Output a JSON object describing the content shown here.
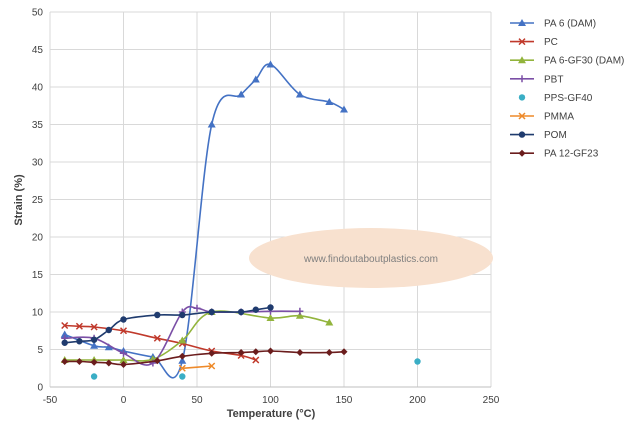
{
  "chart_data": {
    "type": "scatter",
    "title": "",
    "xlabel": "Temperature (°C)",
    "ylabel": "Strain (%)",
    "xlim": [
      -50,
      250
    ],
    "ylim": [
      0,
      50
    ],
    "xticks": [
      -50,
      0,
      50,
      100,
      150,
      200,
      250
    ],
    "yticks": [
      0,
      5,
      10,
      15,
      20,
      25,
      30,
      35,
      40,
      45,
      50
    ],
    "grid": true,
    "legend_position": "right",
    "watermark": "www.findoutaboutplastics.com",
    "series": [
      {
        "name": "PA 6 (DAM)",
        "color": "#4472c4",
        "marker": "triangle",
        "smooth": true,
        "x": [
          -40,
          -20,
          -10,
          0,
          20,
          40,
          60,
          80,
          90,
          100,
          120,
          140,
          150
        ],
        "y": [
          7,
          5.5,
          5.3,
          4.8,
          4,
          3.5,
          35,
          39,
          41,
          43,
          39,
          38,
          37
        ]
      },
      {
        "name": "PC",
        "color": "#c0392b",
        "marker": "x",
        "smooth": true,
        "x": [
          -40,
          -30,
          -20,
          0,
          23,
          40,
          60,
          80,
          90
        ],
        "y": [
          8.2,
          8.1,
          8.0,
          7.5,
          6.5,
          5.8,
          4.8,
          4.2,
          3.6
        ]
      },
      {
        "name": "PA 6-GF30 (DAM)",
        "color": "#92b43c",
        "marker": "triangle",
        "smooth": true,
        "x": [
          -40,
          -20,
          0,
          20,
          40,
          60,
          100,
          120,
          140
        ],
        "y": [
          3.6,
          3.6,
          3.6,
          3.7,
          6.2,
          10.0,
          9.2,
          9.5,
          8.6
        ]
      },
      {
        "name": "PBT",
        "color": "#7b4fa6",
        "marker": "plus",
        "smooth": true,
        "x": [
          -40,
          -20,
          0,
          20,
          40,
          50,
          60,
          80,
          100,
          120
        ],
        "y": [
          6.5,
          6.5,
          4.5,
          3.2,
          10.0,
          10.5,
          10.0,
          10.0,
          10.1,
          10.1
        ]
      },
      {
        "name": "PPS-GF40",
        "color": "#3aaec5",
        "marker": "circle",
        "smooth": false,
        "line": false,
        "x": [
          -20,
          40,
          200
        ],
        "y": [
          1.4,
          1.4,
          3.4
        ]
      },
      {
        "name": "PMMA",
        "color": "#ee8a2a",
        "marker": "x",
        "smooth": true,
        "x": [
          40,
          60
        ],
        "y": [
          2.5,
          2.8
        ]
      },
      {
        "name": "POM",
        "color": "#1f3b6e",
        "marker": "circle",
        "smooth": true,
        "x": [
          -40,
          -30,
          -20,
          -10,
          0,
          23,
          40,
          60,
          80,
          90,
          100
        ],
        "y": [
          5.9,
          6.1,
          6.3,
          7.6,
          9.0,
          9.6,
          9.6,
          10.0,
          10.0,
          10.3,
          10.6
        ]
      },
      {
        "name": "PA 12-GF23",
        "color": "#6b1d1d",
        "marker": "diamond",
        "smooth": true,
        "x": [
          -40,
          -30,
          -20,
          -10,
          0,
          23,
          40,
          60,
          80,
          90,
          100,
          120,
          140,
          150
        ],
        "y": [
          3.4,
          3.4,
          3.3,
          3.2,
          3.0,
          3.5,
          4.1,
          4.5,
          4.6,
          4.7,
          4.8,
          4.6,
          4.6,
          4.7
        ]
      }
    ]
  }
}
